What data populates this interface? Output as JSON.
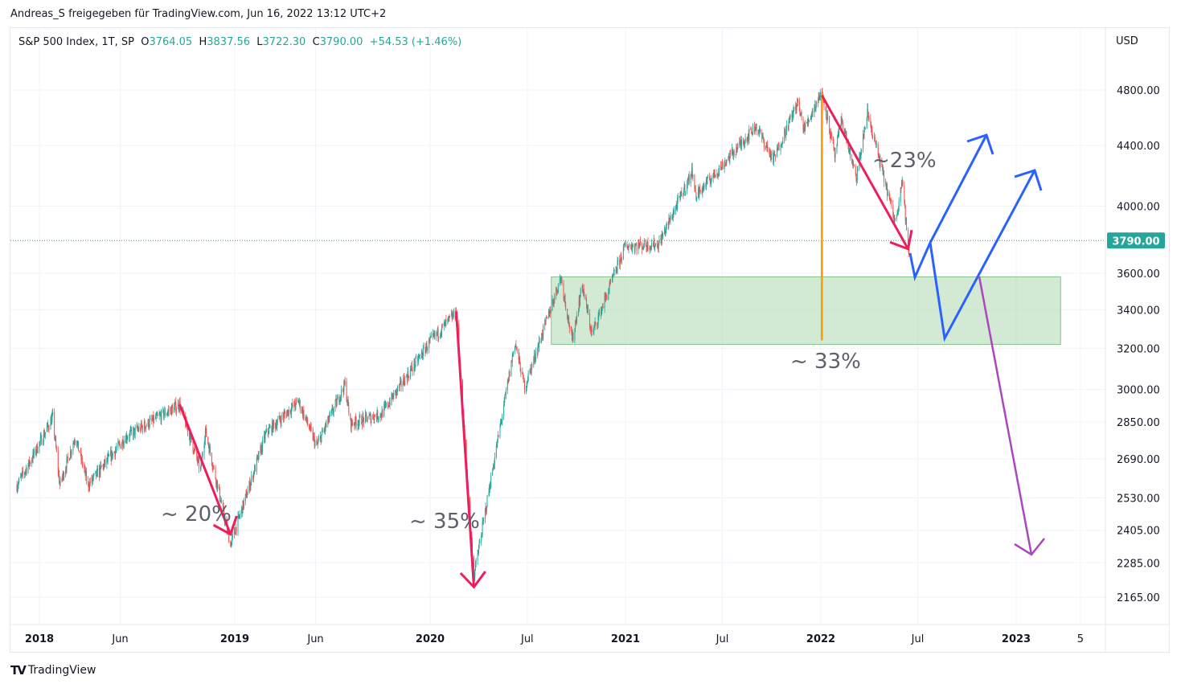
{
  "header": {
    "share_text": "Andreas_S freigegeben für TradingView.com, Jun 16, 2022 13:12 UTC+2"
  },
  "legend": {
    "symbol": "S&P 500 Index, 1T, SP",
    "o_label": "O",
    "o_value": "3764.05",
    "h_label": "H",
    "h_value": "3837.56",
    "l_label": "L",
    "l_value": "3722.30",
    "c_label": "C",
    "c_value": "3790.00",
    "change": "+54.53 (+1.46%)"
  },
  "footer": {
    "logo_text": "TradingView"
  },
  "colors": {
    "up": "#26a69a",
    "down": "#ef5350",
    "last_price": "#26a69a",
    "zone": "#a5d6a7",
    "drop_arrow": "#ec1e5c",
    "measure": "#ff9800",
    "projection": "#2962ff",
    "bear_projection": "#ab47bc"
  },
  "chart_data": {
    "type": "candlestick",
    "y_scale": "log",
    "currency": "USD",
    "y_ticks": [
      "4800.00",
      "4400.00",
      "4000.00",
      "3600.00",
      "3400.00",
      "3200.00",
      "3000.00",
      "2850.00",
      "2690.00",
      "2530.00",
      "2405.00",
      "2285.00",
      "2165.00"
    ],
    "x_ticks": [
      {
        "label": "2018",
        "date": "2018-01-01",
        "bold": true
      },
      {
        "label": "Jun",
        "date": "2018-06-01",
        "bold": false
      },
      {
        "label": "2019",
        "date": "2019-01-01",
        "bold": true
      },
      {
        "label": "Jun",
        "date": "2019-06-01",
        "bold": false
      },
      {
        "label": "2020",
        "date": "2020-01-01",
        "bold": true
      },
      {
        "label": "Jul",
        "date": "2020-07-01",
        "bold": false
      },
      {
        "label": "2021",
        "date": "2021-01-01",
        "bold": true
      },
      {
        "label": "Jul",
        "date": "2021-07-01",
        "bold": false
      },
      {
        "label": "2022",
        "date": "2022-01-01",
        "bold": true
      },
      {
        "label": "Jul",
        "date": "2022-07-01",
        "bold": false
      },
      {
        "label": "2023",
        "date": "2023-01-01",
        "bold": true
      },
      {
        "label": "5",
        "date": "2023-05-01",
        "bold": false
      }
    ],
    "last_price": "3790.00",
    "approx_closes": [
      [
        "2017-11-20",
        2580
      ],
      [
        "2017-12-15",
        2680
      ],
      [
        "2018-01-26",
        2872
      ],
      [
        "2018-02-08",
        2581
      ],
      [
        "2018-03-09",
        2786
      ],
      [
        "2018-04-02",
        2581
      ],
      [
        "2018-06-12",
        2786
      ],
      [
        "2018-07-25",
        2846
      ],
      [
        "2018-09-20",
        2930
      ],
      [
        "2018-10-29",
        2641
      ],
      [
        "2018-11-07",
        2813
      ],
      [
        "2018-12-24",
        2351
      ],
      [
        "2019-03-01",
        2803
      ],
      [
        "2019-04-30",
        2945
      ],
      [
        "2019-06-03",
        2744
      ],
      [
        "2019-07-26",
        3025
      ],
      [
        "2019-08-05",
        2844
      ],
      [
        "2019-10-02",
        2887
      ],
      [
        "2019-12-31",
        3230
      ],
      [
        "2020-02-19",
        3386
      ],
      [
        "2020-03-23",
        2237
      ],
      [
        "2020-06-08",
        3232
      ],
      [
        "2020-06-26",
        3009
      ],
      [
        "2020-09-02",
        3580
      ],
      [
        "2020-09-23",
        3237
      ],
      [
        "2020-10-12",
        3534
      ],
      [
        "2020-10-30",
        3270
      ],
      [
        "2020-12-31",
        3756
      ],
      [
        "2021-03-04",
        3768
      ],
      [
        "2021-05-07",
        4232
      ],
      [
        "2021-05-12",
        4063
      ],
      [
        "2021-09-02",
        4537
      ],
      [
        "2021-10-04",
        4300
      ],
      [
        "2021-11-18",
        4704
      ],
      [
        "2021-12-01",
        4513
      ],
      [
        "2022-01-03",
        4796
      ],
      [
        "2022-01-27",
        4326
      ],
      [
        "2022-02-09",
        4587
      ],
      [
        "2022-03-08",
        4170
      ],
      [
        "2022-03-29",
        4631
      ],
      [
        "2022-05-20",
        3900
      ],
      [
        "2022-06-02",
        4176
      ],
      [
        "2022-06-13",
        3750
      ],
      [
        "2022-06-16",
        3666
      ]
    ],
    "annotations": [
      {
        "type": "drop_arrow",
        "label": "~ 20%",
        "from": [
          "2018-09-20",
          2930
        ],
        "to": [
          "2018-12-24",
          2390
        ]
      },
      {
        "type": "drop_arrow",
        "label": "~ 35%",
        "from": [
          "2020-02-19",
          3390
        ],
        "to": [
          "2020-03-23",
          2200
        ]
      },
      {
        "type": "drop_arrow",
        "label": "~23%",
        "from": [
          "2022-01-03",
          4760
        ],
        "to": [
          "2022-06-13",
          3740
        ]
      },
      {
        "type": "measure_line",
        "label": "~ 33%",
        "date": "2022-01-03",
        "from": 4780,
        "to": 3240
      },
      {
        "type": "zone",
        "from_date": "2020-08-15",
        "to_date": "2023-03-25",
        "low": 3220,
        "high": 3580
      }
    ]
  }
}
